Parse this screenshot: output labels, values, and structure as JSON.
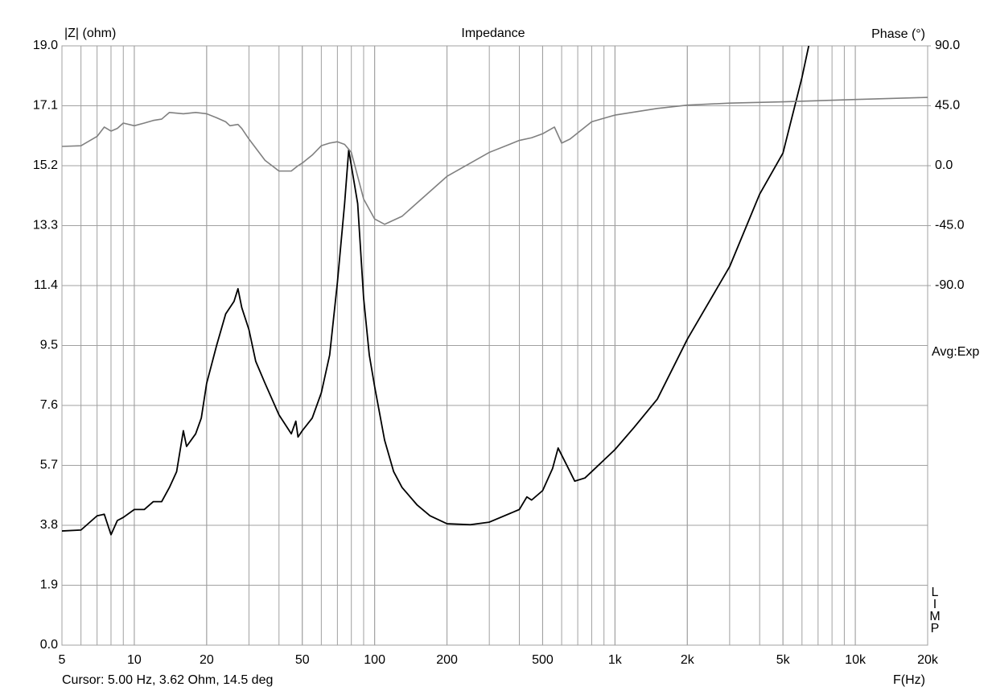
{
  "chart_data": {
    "type": "line",
    "title": "Impedance",
    "y_label": "|Z| (ohm)",
    "y2_label": "Phase (°)",
    "x_label": "F(Hz)",
    "annotations": [
      "Avg:Exp",
      "LIMP",
      "Cursor: 5.00 Hz, 3.62 Ohm, 14.5 deg"
    ],
    "x_log": true,
    "grid": true,
    "xlim": [
      5,
      20000
    ],
    "xticks": [
      5,
      10,
      20,
      50,
      100,
      200,
      500,
      {
        "value": 1000,
        "label": "1k"
      },
      {
        "value": 2000,
        "label": "2k"
      },
      {
        "value": 5000,
        "label": "5k"
      },
      {
        "value": 10000,
        "label": "10k"
      },
      {
        "value": 20000,
        "label": "20k"
      }
    ],
    "ylim": [
      0,
      19
    ],
    "yticks": [
      {
        "value": 0,
        "label": "0.0"
      },
      1.9,
      3.8,
      5.7,
      7.6,
      9.5,
      11.4,
      13.3,
      15.2,
      17.1,
      {
        "value": 19,
        "label": "19.0"
      }
    ],
    "y2lim": [
      -360,
      90
    ],
    "y2ticks": [
      {
        "value": -90,
        "label": "-90.0"
      },
      {
        "value": -45,
        "label": "-45.0"
      },
      {
        "value": 0,
        "label": "0.0"
      },
      {
        "value": 45,
        "label": "45.0"
      },
      {
        "value": 90,
        "label": "90.0"
      }
    ],
    "series": [
      {
        "name": "|Z|",
        "color": "#000000",
        "x": [
          5,
          6,
          7,
          7.5,
          8,
          8.5,
          9,
          10,
          11,
          12,
          13,
          14,
          15,
          16,
          16.5,
          18,
          19,
          20,
          22,
          24,
          26,
          27,
          28,
          30,
          32,
          35,
          40,
          45,
          47,
          48,
          50,
          55,
          60,
          65,
          70,
          75,
          78,
          85,
          90,
          95,
          100,
          110,
          120,
          130,
          150,
          170,
          200,
          250,
          300,
          400,
          430,
          450,
          500,
          550,
          580,
          650,
          680,
          750,
          800,
          1000,
          1200,
          1500,
          2000,
          3000,
          4000,
          5000,
          6000,
          6400
        ],
        "values": [
          3.62,
          3.65,
          4.1,
          4.15,
          3.5,
          3.95,
          4.05,
          4.3,
          4.3,
          4.55,
          4.55,
          5.0,
          5.5,
          6.8,
          6.3,
          6.7,
          7.2,
          8.3,
          9.5,
          10.5,
          10.9,
          11.3,
          10.7,
          10.0,
          9.0,
          8.3,
          7.3,
          6.7,
          7.1,
          6.6,
          6.8,
          7.2,
          8.0,
          9.2,
          11.5,
          14.0,
          15.7,
          14.0,
          11.0,
          9.2,
          8.2,
          6.5,
          5.5,
          5.0,
          4.45,
          4.1,
          3.85,
          3.82,
          3.9,
          4.3,
          4.7,
          4.6,
          4.9,
          5.6,
          6.25,
          5.5,
          5.2,
          5.3,
          5.5,
          6.2,
          6.9,
          7.8,
          9.7,
          12.0,
          14.3,
          15.6,
          18.0,
          19.0
        ]
      },
      {
        "name": "Phase",
        "color": "#808080",
        "axis": "y2",
        "x": [
          5,
          6,
          7,
          7.5,
          8,
          8.5,
          9,
          10,
          11,
          12,
          13,
          14,
          16,
          18,
          20,
          22,
          24,
          25,
          27,
          28,
          30,
          35,
          40,
          45,
          48,
          50,
          55,
          60,
          65,
          70,
          75,
          80,
          90,
          100,
          110,
          130,
          150,
          200,
          300,
          400,
          450,
          500,
          560,
          600,
          650,
          800,
          1000,
          1500,
          2000,
          3000,
          5000,
          10000,
          20000
        ],
        "values": [
          14.5,
          15,
          22,
          29,
          26,
          28,
          32,
          30,
          32,
          34,
          35,
          40,
          39,
          40,
          39,
          36,
          33,
          30,
          31,
          28,
          20,
          4,
          -4,
          -4,
          0,
          2,
          8,
          15,
          17,
          18,
          16,
          10,
          -25,
          -40,
          -44,
          -38,
          -28,
          -8,
          10,
          19,
          21,
          24,
          29,
          17,
          20,
          33,
          38,
          43,
          45.5,
          47,
          48,
          49.7,
          51.3
        ]
      }
    ]
  }
}
